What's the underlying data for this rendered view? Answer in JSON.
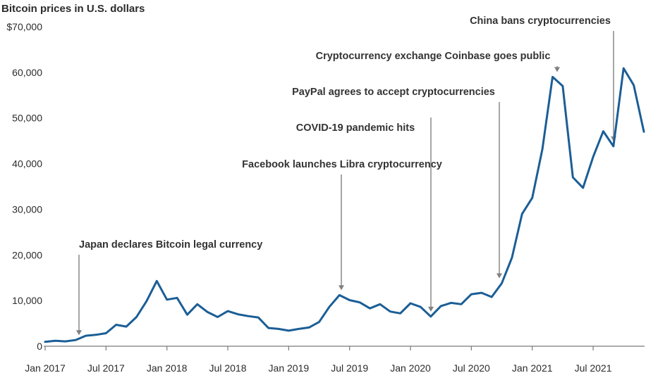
{
  "chart_data": {
    "type": "line",
    "title": "Bitcoin prices in U.S. dollars",
    "xlabel": "",
    "ylabel": "",
    "ylim": [
      0,
      70000
    ],
    "yticks": [
      {
        "value": 0,
        "label": "0"
      },
      {
        "value": 10000,
        "label": "10,000"
      },
      {
        "value": 20000,
        "label": "20,000"
      },
      {
        "value": 30000,
        "label": "30,000"
      },
      {
        "value": 40000,
        "label": "40,000"
      },
      {
        "value": 50000,
        "label": "50,000"
      },
      {
        "value": 60000,
        "label": "60,000"
      },
      {
        "value": 70000,
        "label": "$70,000"
      }
    ],
    "xticks": [
      {
        "date": "2017-01",
        "label": "Jan 2017"
      },
      {
        "date": "2017-07",
        "label": "Jul 2017"
      },
      {
        "date": "2018-01",
        "label": "Jan 2018"
      },
      {
        "date": "2018-07",
        "label": "Jul 2018"
      },
      {
        "date": "2019-01",
        "label": "Jan 2019"
      },
      {
        "date": "2019-07",
        "label": "Jul 2019"
      },
      {
        "date": "2020-01",
        "label": "Jan 2020"
      },
      {
        "date": "2020-07",
        "label": "Jul 2020"
      },
      {
        "date": "2021-01",
        "label": "Jan 2021"
      },
      {
        "date": "2021-07",
        "label": "Jul 2021"
      }
    ],
    "grid": false,
    "series": [
      {
        "name": "",
        "color": "#1b5e96",
        "points": [
          [
            "2017-01",
            960
          ],
          [
            "2017-02",
            1190
          ],
          [
            "2017-03",
            1070
          ],
          [
            "2017-04",
            1350
          ],
          [
            "2017-05",
            2300
          ],
          [
            "2017-06",
            2500
          ],
          [
            "2017-07",
            2850
          ],
          [
            "2017-08",
            4700
          ],
          [
            "2017-09",
            4300
          ],
          [
            "2017-10",
            6400
          ],
          [
            "2017-11",
            9900
          ],
          [
            "2017-12",
            14300
          ],
          [
            "2018-01",
            10200
          ],
          [
            "2018-02",
            10600
          ],
          [
            "2018-03",
            6900
          ],
          [
            "2018-04",
            9200
          ],
          [
            "2018-05",
            7500
          ],
          [
            "2018-06",
            6400
          ],
          [
            "2018-07",
            7700
          ],
          [
            "2018-08",
            7000
          ],
          [
            "2018-09",
            6600
          ],
          [
            "2018-10",
            6300
          ],
          [
            "2018-11",
            4000
          ],
          [
            "2018-12",
            3800
          ],
          [
            "2019-01",
            3400
          ],
          [
            "2019-02",
            3800
          ],
          [
            "2019-03",
            4100
          ],
          [
            "2019-04",
            5300
          ],
          [
            "2019-05",
            8600
          ],
          [
            "2019-06",
            11200
          ],
          [
            "2019-07",
            10100
          ],
          [
            "2019-08",
            9600
          ],
          [
            "2019-09",
            8300
          ],
          [
            "2019-10",
            9200
          ],
          [
            "2019-11",
            7600
          ],
          [
            "2019-12",
            7200
          ],
          [
            "2020-01",
            9400
          ],
          [
            "2020-02",
            8600
          ],
          [
            "2020-03",
            6500
          ],
          [
            "2020-04",
            8800
          ],
          [
            "2020-05",
            9500
          ],
          [
            "2020-06",
            9200
          ],
          [
            "2020-07",
            11400
          ],
          [
            "2020-08",
            11700
          ],
          [
            "2020-09",
            10800
          ],
          [
            "2020-10",
            13800
          ],
          [
            "2020-11",
            19400
          ],
          [
            "2020-12",
            29000
          ],
          [
            "2021-01",
            32500
          ],
          [
            "2021-02",
            43200
          ],
          [
            "2021-03",
            59000
          ],
          [
            "2021-04",
            57000
          ],
          [
            "2021-05",
            37000
          ],
          [
            "2021-06",
            34700
          ],
          [
            "2021-07",
            41500
          ],
          [
            "2021-08",
            47100
          ],
          [
            "2021-09",
            43800
          ],
          [
            "2021-10",
            60900
          ],
          [
            "2021-11",
            57200
          ],
          [
            "2021-12",
            47000
          ]
        ]
      }
    ],
    "annotations": [
      {
        "text": "Japan declares Bitcoin legal currency",
        "date": "2017-04"
      },
      {
        "text": "Facebook launches Libra cryptocurrency",
        "date": "2019-06"
      },
      {
        "text": "COVID-19 pandemic hits",
        "date": "2020-03"
      },
      {
        "text": "PayPal agrees to accept cryptocurrencies",
        "date": "2020-10"
      },
      {
        "text": "Cryptocurrency exchange Coinbase goes public",
        "date": "2021-03"
      },
      {
        "text": "China bans cryptocurrencies",
        "date": "2021-09"
      }
    ]
  }
}
